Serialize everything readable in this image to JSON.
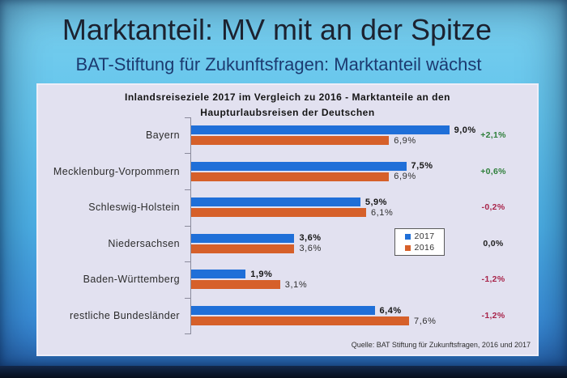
{
  "slide": {
    "title": "Marktanteil: MV mit an der Spitze",
    "subtitle": "BAT-Stiftung für Zukunftsfragen: Marktanteil wächst",
    "source": "Quelle: BAT Stiftung für Zukunftsfragen, 2016 und 2017"
  },
  "colors": {
    "change_positive": "#2e7f3a",
    "change_negative": "#a8244a",
    "change_zero": "#1e1e1e"
  },
  "chart_data": {
    "type": "bar",
    "orientation": "horizontal",
    "title": "Inlandsreiseziele 2017 im Vergleich zu 2016 - Marktanteile an den Haupturlaubsreisen der Deutschen",
    "categories": [
      "Bayern",
      "Mecklenburg-Vorpommern",
      "Schleswig-Holstein",
      "Niedersachsen",
      "Baden-Württemberg",
      "restliche Bundesländer"
    ],
    "unit": "%",
    "xlim": [
      0,
      10
    ],
    "grid": false,
    "legend": "center-right",
    "series": [
      {
        "name": "2017",
        "color": "#1f6fd8",
        "values": [
          9.0,
          7.5,
          5.9,
          3.6,
          1.9,
          6.4
        ],
        "labels": [
          "9,0%",
          "7,5%",
          "5,9%",
          "3,6%",
          "1,9%",
          "6,4%"
        ]
      },
      {
        "name": "2016",
        "color": "#d6602a",
        "values": [
          6.9,
          6.9,
          6.1,
          3.6,
          3.1,
          7.6
        ],
        "labels": [
          "6,9%",
          "6,9%",
          "6,1%",
          "3,6%",
          "3,1%",
          "7,6%"
        ]
      }
    ],
    "change": {
      "values": [
        2.1,
        0.6,
        -0.2,
        0.0,
        -1.2,
        -1.2
      ],
      "labels": [
        "+2,1%",
        "+0,6%",
        "-0,2%",
        "0,0%",
        "-1,2%",
        "-1,2%"
      ]
    }
  }
}
